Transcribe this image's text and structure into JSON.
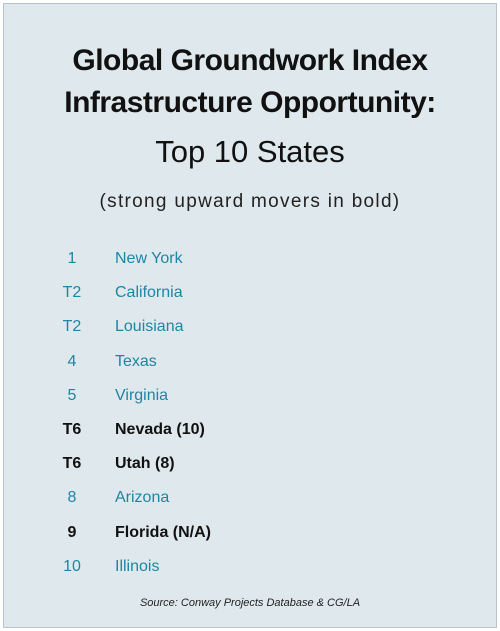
{
  "header": {
    "title_lines": [
      "Global Groundwork Index",
      "Infrastructure Opportunity:"
    ],
    "subtitle": "Top 10 States",
    "note": "(strong upward movers in bold)"
  },
  "list": {
    "rows": [
      {
        "rank": "1",
        "state": "New York",
        "bold": false
      },
      {
        "rank": "T2",
        "state": "California",
        "bold": false
      },
      {
        "rank": "T2",
        "state": "Louisiana",
        "bold": false
      },
      {
        "rank": "4",
        "state": "Texas",
        "bold": false
      },
      {
        "rank": "5",
        "state": "Virginia",
        "bold": false
      },
      {
        "rank": "T6",
        "state": "Nevada (10)",
        "bold": true
      },
      {
        "rank": "T6",
        "state": "Utah (8)",
        "bold": true
      },
      {
        "rank": "8",
        "state": "Arizona",
        "bold": false
      },
      {
        "rank": "9",
        "state": "Florida (N/A)",
        "bold": true
      },
      {
        "rank": "10",
        "state": "Illinois",
        "bold": false
      }
    ],
    "plain_color": "#1d86a3",
    "bold_color": "#111111"
  },
  "footer": {
    "source": "Source: Conway Projects Database & CG/LA"
  }
}
